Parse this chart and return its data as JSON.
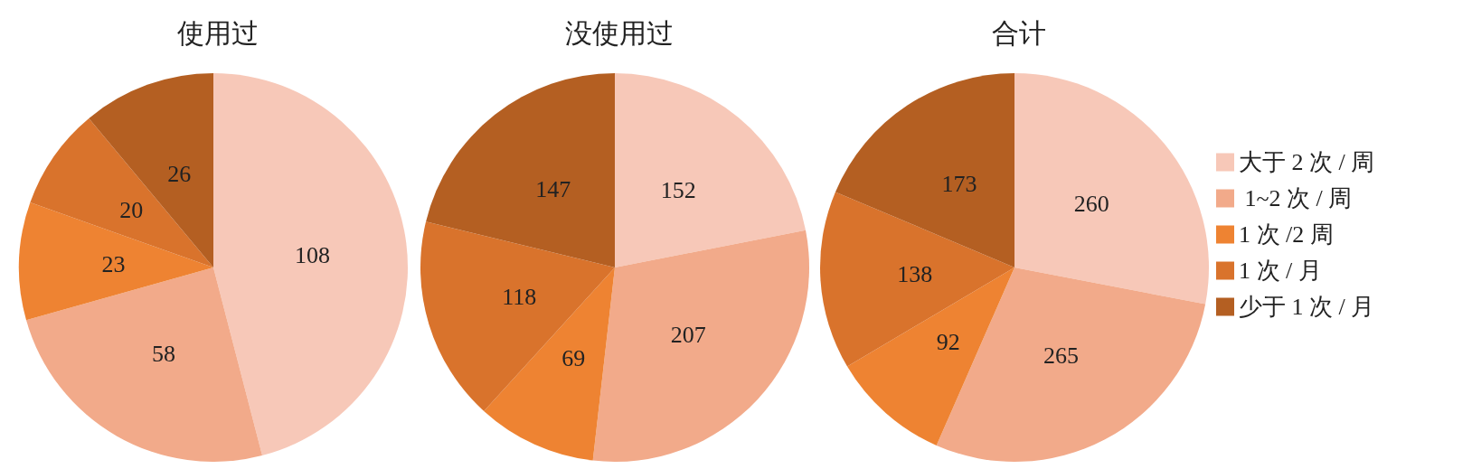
{
  "chart_data": [
    {
      "type": "pie",
      "title": "使用过",
      "categories": [
        null,
        null,
        null,
        null,
        null
      ],
      "values": [
        108,
        58,
        23,
        20,
        26
      ],
      "colors": [
        "#f7c8b8",
        "#f2aa8a",
        "#ee8332",
        "#d9732c",
        "#b45f22"
      ],
      "data_labels": true
    },
    {
      "type": "pie",
      "title": "没使用过",
      "categories": [
        null,
        null,
        null,
        null,
        null
      ],
      "values": [
        152,
        207,
        69,
        118,
        147
      ],
      "colors": [
        "#f7c8b8",
        "#f2aa8a",
        "#ee8332",
        "#d9732c",
        "#b45f22"
      ],
      "data_labels": true
    },
    {
      "type": "pie",
      "title": "合计",
      "categories": [
        "大于 2 次 / 周",
        " 1~2 次 / 周",
        "1 次 /2 周",
        "1 次 / 月",
        "少于 1 次 / 月"
      ],
      "values": [
        260,
        265,
        92,
        138,
        173
      ],
      "colors": [
        "#f7c8b8",
        "#f2aa8a",
        "#ee8332",
        "#d9732c",
        "#b45f22"
      ],
      "data_labels": true,
      "legend": "right"
    }
  ]
}
